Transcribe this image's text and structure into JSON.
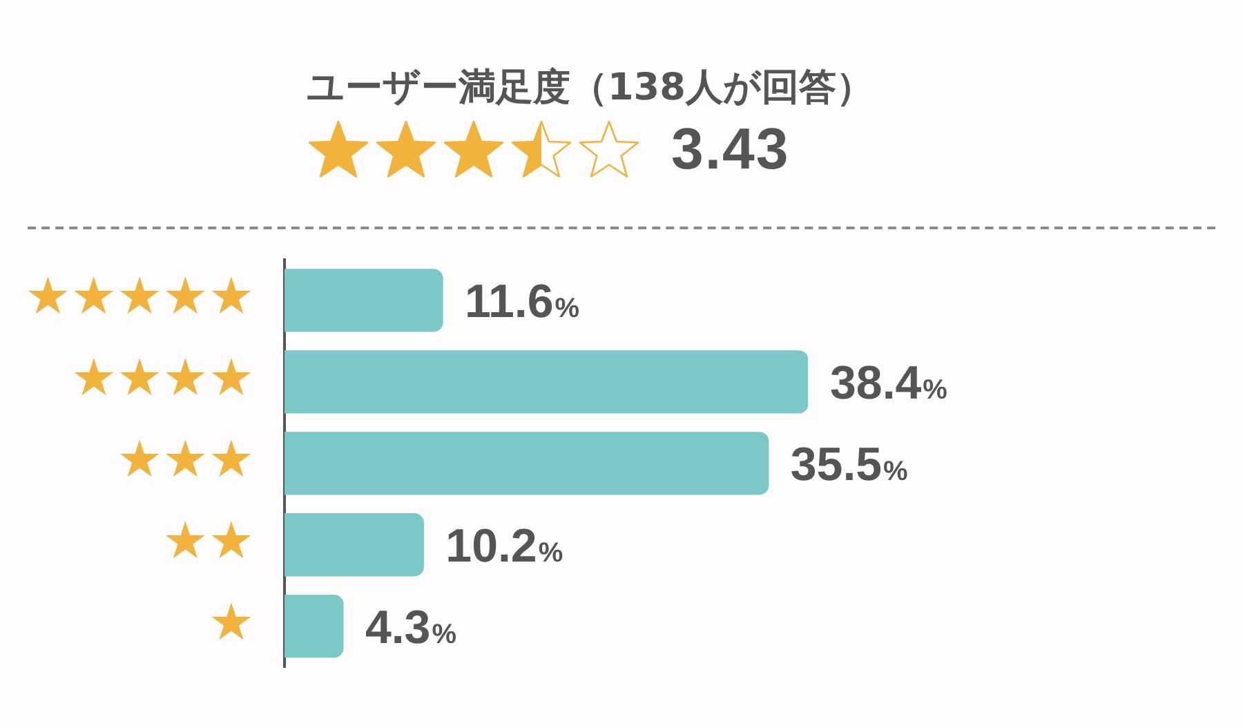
{
  "chart_data": {
    "type": "bar",
    "orientation": "horizontal",
    "title": "ユーザー満足度（138人が回答）",
    "annotations": [
      "3.43"
    ],
    "categories": [
      "★★★★★",
      "★★★★",
      "★★★",
      "★★",
      "★"
    ],
    "values": [
      11.6,
      38.4,
      35.5,
      10.2,
      4.3
    ],
    "value_labels": [
      "11.6%",
      "38.4%",
      "35.5%",
      "10.2%",
      "4.3%"
    ],
    "color": "#7cc8c6",
    "tick_labels": "y"
  }
}
